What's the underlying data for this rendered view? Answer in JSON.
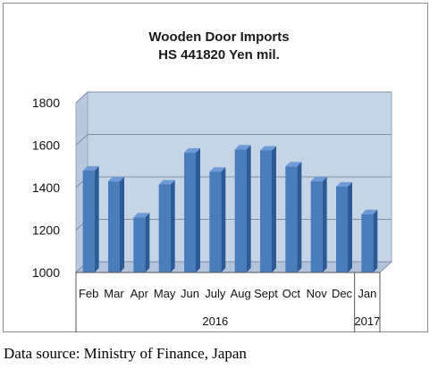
{
  "chart_data": {
    "type": "bar",
    "title": "Wooden Door Imports",
    "subtitle": "HS 441820 Yen mil.",
    "categories": [
      "Feb",
      "Mar",
      "Apr",
      "May",
      "Jun",
      "July",
      "Aug",
      "Sept",
      "Oct",
      "Nov",
      "Dec",
      "Jan"
    ],
    "values": [
      1480,
      1430,
      1260,
      1415,
      1565,
      1475,
      1580,
      1575,
      1500,
      1430,
      1405,
      1275
    ],
    "year_groups": [
      {
        "label": "2016",
        "count": 11
      },
      {
        "label": "2017",
        "count": 1
      }
    ],
    "ylim": [
      1000,
      1800
    ],
    "yticks": [
      1000,
      1200,
      1400,
      1600,
      1800
    ],
    "grid": true,
    "colors": {
      "bar_front": "#4a7ebb",
      "bar_side": "#2c5a94",
      "bar_top": "#6e9bd6",
      "wall": "#c6d4e8",
      "floor": "#b3c3db"
    }
  },
  "footer": {
    "source": "Data source: Ministry of Finance, Japan"
  }
}
